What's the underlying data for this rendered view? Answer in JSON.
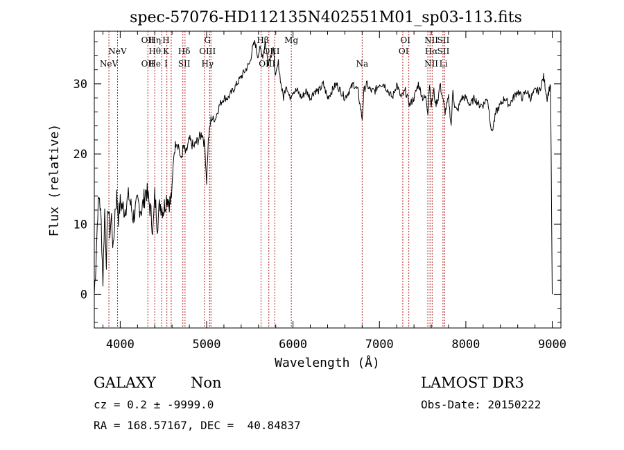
{
  "chart_data": {
    "type": "line",
    "title": "spec-57076-HD112135N402551M01_sp03-113.fits",
    "xlabel": "Wavelength (Å)",
    "ylabel": "Flux (relative)",
    "xlim": [
      3700,
      9100
    ],
    "ylim": [
      -4.8,
      37.5
    ],
    "xticks": [
      4000,
      5000,
      6000,
      7000,
      8000,
      9000
    ],
    "yticks": [
      0,
      10,
      20,
      30
    ],
    "series": [
      {
        "x": [
          3700,
          3720,
          3740,
          3760,
          3780,
          3800,
          3820,
          3840,
          3860,
          3880,
          3900,
          3920,
          3940,
          3960,
          3980,
          4000,
          4050,
          4100,
          4150,
          4200,
          4250,
          4300,
          4350,
          4380,
          4400,
          4430,
          4460,
          4500,
          4540,
          4580,
          4600,
          4620,
          4650,
          4680,
          4700,
          4730,
          4760,
          4800,
          4850,
          4900,
          4950,
          4980,
          5000,
          5020,
          5050,
          5100,
          5150,
          5200,
          5250,
          5300,
          5350,
          5400,
          5450,
          5500,
          5530,
          5560,
          5590,
          5620,
          5650,
          5680,
          5710,
          5740,
          5770,
          5800,
          5830,
          5860,
          5890,
          5920,
          5960,
          6000,
          6050,
          6100,
          6150,
          6200,
          6250,
          6300,
          6350,
          6400,
          6450,
          6500,
          6550,
          6600,
          6650,
          6700,
          6750,
          6800,
          6820,
          6850,
          6900,
          6950,
          7000,
          7050,
          7100,
          7150,
          7200,
          7250,
          7300,
          7350,
          7400,
          7450,
          7500,
          7540,
          7560,
          7580,
          7600,
          7630,
          7650,
          7680,
          7700,
          7730,
          7760,
          7800,
          7830,
          7850,
          7870,
          7900,
          7950,
          8000,
          8050,
          8100,
          8150,
          8200,
          8250,
          8300,
          8350,
          8400,
          8450,
          8500,
          8550,
          8600,
          8650,
          8700,
          8750,
          8800,
          8850,
          8900,
          8940,
          8980,
          9000
        ],
        "y": [
          0,
          5,
          12,
          14,
          10,
          2,
          12,
          5,
          13,
          9,
          11,
          6,
          12,
          14,
          11,
          13,
          12,
          14,
          11,
          13,
          12,
          15,
          12,
          9,
          14,
          10,
          13,
          12,
          14,
          13,
          15,
          20,
          22,
          21,
          19,
          21,
          20,
          22,
          21,
          22,
          23,
          21,
          16,
          22,
          25,
          25,
          27,
          28,
          28,
          29,
          30,
          31,
          32,
          33,
          35,
          36,
          34,
          35,
          34,
          36,
          33,
          34,
          35,
          31,
          33,
          30,
          28,
          30,
          28,
          29,
          29,
          28,
          29,
          28,
          29,
          29,
          30,
          28,
          29,
          30,
          29,
          28,
          29,
          30,
          29,
          25,
          29,
          30,
          29,
          29,
          30,
          30,
          29,
          28,
          30,
          28,
          29,
          27,
          28,
          30,
          28,
          28,
          26,
          30,
          27,
          29,
          27,
          28,
          30,
          28,
          26,
          28,
          24,
          29,
          27,
          26,
          28,
          28,
          27,
          28,
          27,
          27,
          28,
          23,
          26,
          27,
          28,
          27,
          28,
          29,
          28,
          29,
          28,
          29,
          29,
          31,
          28,
          30,
          0
        ]
      }
    ],
    "line_labels": [
      {
        "wavelength": 3869,
        "text": "NeV",
        "row": 3
      },
      {
        "wavelength": 3969,
        "text": "NeV",
        "row": 2
      },
      {
        "wavelength": 4320,
        "text": "OII",
        "row": 1
      },
      {
        "wavelength": 4320,
        "text": "OII",
        "row": 3
      },
      {
        "wavelength": 4400,
        "text": "Hη",
        "row": 1
      },
      {
        "wavelength": 4400,
        "text": "Hθ",
        "row": 2
      },
      {
        "wavelength": 4400,
        "text": "He",
        "row": 3
      },
      {
        "wavelength": 4530,
        "text": "H",
        "row": 1
      },
      {
        "wavelength": 4530,
        "text": "K",
        "row": 2
      },
      {
        "wavelength": 4530,
        "text": "I",
        "row": 3
      },
      {
        "wavelength": 4740,
        "text": "Hδ",
        "row": 2
      },
      {
        "wavelength": 4740,
        "text": "SII",
        "row": 3
      },
      {
        "wavelength": 5010,
        "text": "G",
        "row": 1
      },
      {
        "wavelength": 5010,
        "text": "OIII",
        "row": 2
      },
      {
        "wavelength": 5010,
        "text": "Hγ",
        "row": 3
      },
      {
        "wavelength": 5650,
        "text": "Hβ",
        "row": 1
      },
      {
        "wavelength": 5750,
        "text": "OIII",
        "row": 2
      },
      {
        "wavelength": 5700,
        "text": "OIII",
        "row": 3
      },
      {
        "wavelength": 5980,
        "text": "Mg",
        "row": 1
      },
      {
        "wavelength": 6800,
        "text": "Na",
        "row": 3
      },
      {
        "wavelength": 7300,
        "text": "OI",
        "row": 1
      },
      {
        "wavelength": 7280,
        "text": "OI",
        "row": 2
      },
      {
        "wavelength": 7600,
        "text": "NII",
        "row": 1
      },
      {
        "wavelength": 7600,
        "text": "Hα",
        "row": 2
      },
      {
        "wavelength": 7600,
        "text": "NII",
        "row": 3
      },
      {
        "wavelength": 7740,
        "text": "SII",
        "row": 1
      },
      {
        "wavelength": 7740,
        "text": "SII",
        "row": 2
      },
      {
        "wavelength": 7740,
        "text": "Li",
        "row": 3
      }
    ],
    "line_markers": [
      3869,
      3969,
      4320,
      4400,
      4480,
      4540,
      4590,
      4725,
      4750,
      4975,
      5035,
      5050,
      5630,
      5720,
      5790,
      5980,
      6800,
      7270,
      7340,
      7560,
      7585,
      7610,
      7735,
      7755
    ],
    "colors": {
      "spectrum": "#000000",
      "markers": "#b22222",
      "axes": "#000000"
    }
  },
  "info": {
    "object_class": "GALAXY",
    "subclass": "Non",
    "survey": "LAMOST DR3",
    "cz": "cz = 0.2 ± -9999.0",
    "obs_date": "Obs-Date: 20150222",
    "coords": "RA = 168.57167, DEC =  40.84837"
  }
}
